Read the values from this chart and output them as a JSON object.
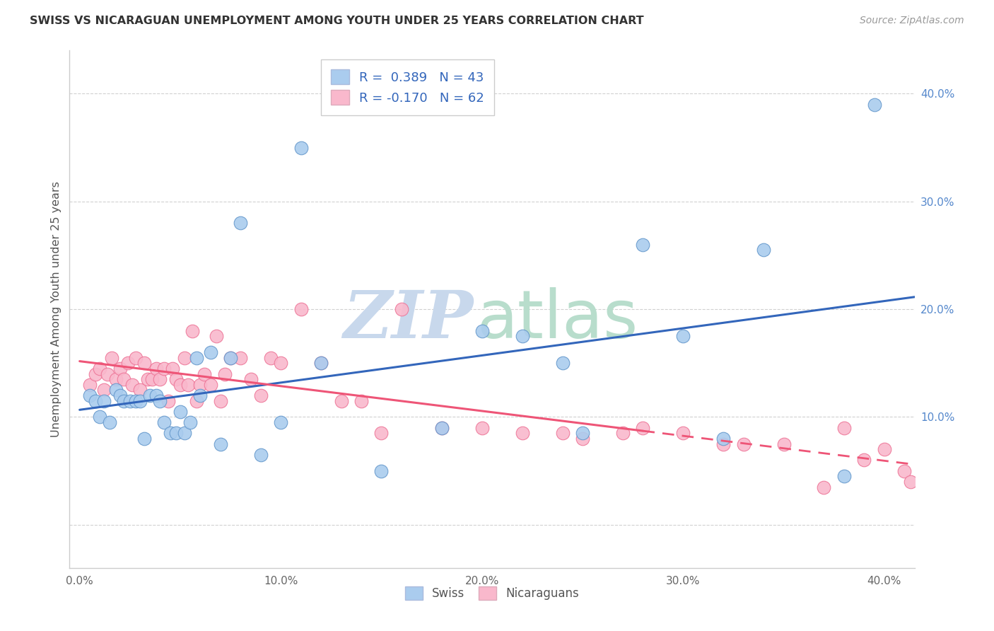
{
  "title": "SWISS VS NICARAGUAN UNEMPLOYMENT AMONG YOUTH UNDER 25 YEARS CORRELATION CHART",
  "source": "Source: ZipAtlas.com",
  "ylabel": "Unemployment Among Youth under 25 years",
  "x_ticks": [
    0.0,
    0.1,
    0.2,
    0.3,
    0.4
  ],
  "x_tick_labels": [
    "0.0%",
    "10.0%",
    "20.0%",
    "30.0%",
    "40.0%"
  ],
  "y_ticks_right": [
    0.0,
    0.1,
    0.2,
    0.3,
    0.4
  ],
  "y_tick_labels_right": [
    "",
    "10.0%",
    "20.0%",
    "30.0%",
    "40.0%"
  ],
  "xlim": [
    -0.005,
    0.415
  ],
  "ylim": [
    -0.04,
    0.44
  ],
  "swiss_color": "#aaccee",
  "nicaraguan_color": "#f9b8cc",
  "swiss_edge_color": "#6699cc",
  "nicaraguan_edge_color": "#ee7799",
  "swiss_line_color": "#3366bb",
  "nicaraguan_line_color": "#ee5577",
  "background_color": "#ffffff",
  "grid_color": "#cccccc",
  "watermark_zip_color": "#c8d8ec",
  "watermark_atlas_color": "#b8ddcc",
  "swiss_x": [
    0.005,
    0.008,
    0.01,
    0.012,
    0.015,
    0.018,
    0.02,
    0.022,
    0.025,
    0.028,
    0.03,
    0.032,
    0.035,
    0.038,
    0.04,
    0.042,
    0.045,
    0.048,
    0.05,
    0.052,
    0.055,
    0.058,
    0.06,
    0.065,
    0.07,
    0.075,
    0.08,
    0.09,
    0.1,
    0.11,
    0.12,
    0.15,
    0.18,
    0.2,
    0.22,
    0.24,
    0.25,
    0.28,
    0.3,
    0.32,
    0.34,
    0.38,
    0.395
  ],
  "swiss_y": [
    0.12,
    0.115,
    0.1,
    0.115,
    0.095,
    0.125,
    0.12,
    0.115,
    0.115,
    0.115,
    0.115,
    0.08,
    0.12,
    0.12,
    0.115,
    0.095,
    0.085,
    0.085,
    0.105,
    0.085,
    0.095,
    0.155,
    0.12,
    0.16,
    0.075,
    0.155,
    0.28,
    0.065,
    0.095,
    0.35,
    0.15,
    0.05,
    0.09,
    0.18,
    0.175,
    0.15,
    0.085,
    0.26,
    0.175,
    0.08,
    0.255,
    0.045,
    0.39
  ],
  "nicaraguan_x": [
    0.005,
    0.008,
    0.01,
    0.012,
    0.014,
    0.016,
    0.018,
    0.02,
    0.022,
    0.024,
    0.026,
    0.028,
    0.03,
    0.032,
    0.034,
    0.036,
    0.038,
    0.04,
    0.042,
    0.044,
    0.046,
    0.048,
    0.05,
    0.052,
    0.054,
    0.056,
    0.058,
    0.06,
    0.062,
    0.065,
    0.068,
    0.07,
    0.072,
    0.075,
    0.08,
    0.085,
    0.09,
    0.095,
    0.1,
    0.11,
    0.12,
    0.13,
    0.14,
    0.15,
    0.16,
    0.18,
    0.2,
    0.22,
    0.24,
    0.25,
    0.27,
    0.28,
    0.3,
    0.32,
    0.33,
    0.35,
    0.37,
    0.38,
    0.39,
    0.4,
    0.41,
    0.413
  ],
  "nicaraguan_y": [
    0.13,
    0.14,
    0.145,
    0.125,
    0.14,
    0.155,
    0.135,
    0.145,
    0.135,
    0.15,
    0.13,
    0.155,
    0.125,
    0.15,
    0.135,
    0.135,
    0.145,
    0.135,
    0.145,
    0.115,
    0.145,
    0.135,
    0.13,
    0.155,
    0.13,
    0.18,
    0.115,
    0.13,
    0.14,
    0.13,
    0.175,
    0.115,
    0.14,
    0.155,
    0.155,
    0.135,
    0.12,
    0.155,
    0.15,
    0.2,
    0.15,
    0.115,
    0.115,
    0.085,
    0.2,
    0.09,
    0.09,
    0.085,
    0.085,
    0.08,
    0.085,
    0.09,
    0.085,
    0.075,
    0.075,
    0.075,
    0.035,
    0.09,
    0.06,
    0.07,
    0.05,
    0.04
  ]
}
